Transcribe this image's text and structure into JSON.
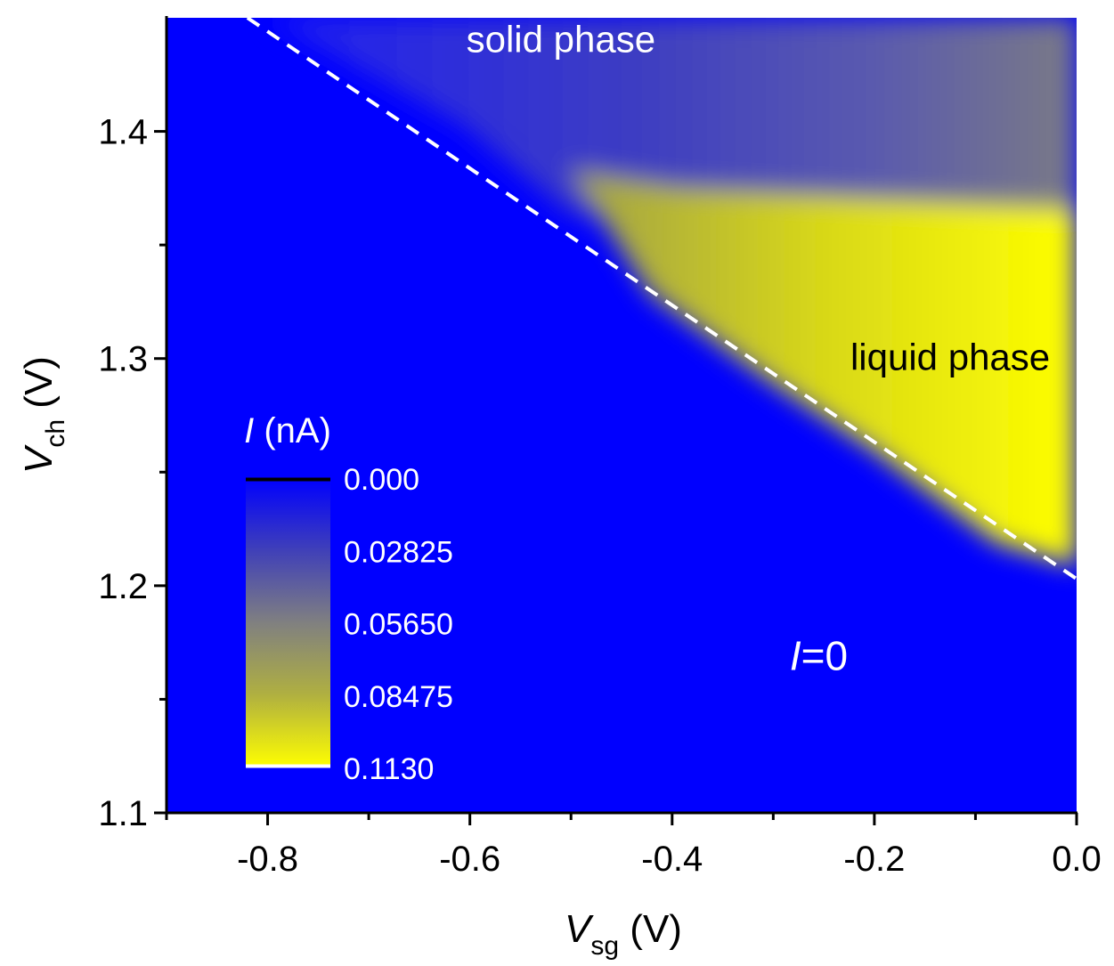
{
  "chart_data": {
    "type": "heatmap",
    "x": {
      "label_main": "V",
      "label_sub": "sg",
      "label_unit": " (V)",
      "range": [
        -0.9,
        0.0
      ],
      "major_ticks": [
        -0.8,
        -0.6,
        -0.4,
        -0.2,
        0.0
      ],
      "tick_labels": [
        "-0.8",
        "-0.6",
        "-0.4",
        "-0.2",
        "0.0"
      ],
      "minor_ticks": [
        -0.9,
        -0.7,
        -0.5,
        -0.3,
        -0.1
      ]
    },
    "y": {
      "label_main": "V",
      "label_sub": "ch",
      "label_unit": " (V)",
      "range": [
        1.1,
        1.45
      ],
      "major_ticks": [
        1.1,
        1.2,
        1.3,
        1.4
      ],
      "tick_labels": [
        "1.1",
        "1.2",
        "1.3",
        "1.4"
      ],
      "minor_ticks": [
        1.15,
        1.25,
        1.35
      ]
    },
    "boundary_line": {
      "style": "dashed",
      "color": "#ffffff",
      "points": [
        [
          -0.82,
          1.45
        ],
        [
          0.0,
          1.203
        ]
      ]
    },
    "colorbar": {
      "title_italic": "I",
      "title_rest": " (nA)",
      "min": 0.0,
      "max": 0.113,
      "tick_labels": [
        "0.000",
        "0.02825",
        "0.05650",
        "0.08475",
        "0.1130"
      ],
      "tick_values": [
        0.0,
        0.02825,
        0.0565,
        0.08475,
        0.113
      ],
      "colors": [
        "#0000ff",
        "#4040b8",
        "#808080",
        "#b0b040",
        "#ffff00"
      ]
    },
    "annotations": [
      {
        "text": "solid phase",
        "x": -0.51,
        "y": 1.435,
        "color": "#ffffff"
      },
      {
        "text": "liquid phase",
        "x": -0.125,
        "y": 1.295,
        "color": "#000000"
      },
      {
        "text_italic": "I",
        "text_rest": "=0",
        "x": -0.255,
        "y": 1.163,
        "color": "#ffffff"
      }
    ]
  }
}
